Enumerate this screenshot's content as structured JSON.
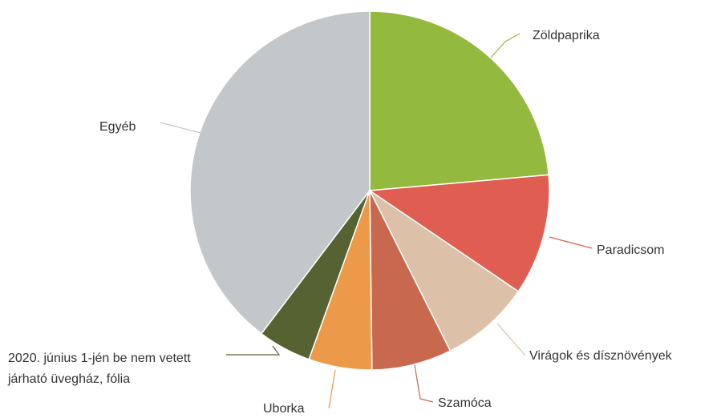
{
  "chart_data": {
    "type": "pie",
    "categories": [
      "Zöldpaprika",
      "Paradicsom",
      "Virágok és dísznövények",
      "Szamóca",
      "Uborka",
      "2020. június 1-jén be nem vetett járható üvegház, fólia",
      "Egyéb"
    ],
    "values": [
      23.6,
      10.9,
      8.1,
      7.2,
      5.7,
      4.8,
      39.7
    ],
    "colors": [
      "#94b93f",
      "#e05d52",
      "#dcc0a7",
      "#c8684f",
      "#ec9a4a",
      "#566232",
      "#c4c7c9"
    ]
  }
}
